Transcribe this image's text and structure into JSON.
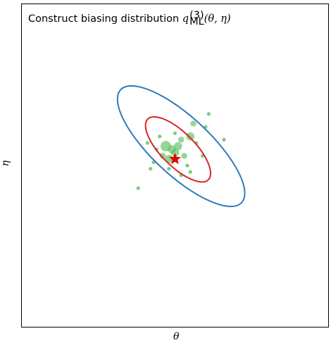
{
  "title": {
    "prefix": "Construct biasing distribution ",
    "q": "q",
    "superscript": "(3)",
    "subscript": "ML",
    "args": "(θ, η)"
  },
  "axes": {
    "xlabel": "θ",
    "ylabel": "η"
  },
  "colors": {
    "outer_ellipse": "#2e7bbf",
    "inner_ellipse": "#d62728",
    "samples": "#5cbf5c",
    "star": "#e00000"
  },
  "chart_data": {
    "type": "scatter",
    "title": "Construct biasing distribution q_ML^(3)(θ, η)",
    "xlabel": "θ",
    "ylabel": "η",
    "center": [
      0.5,
      0.52
    ],
    "samples": [
      {
        "x": 0.48,
        "y": 0.52,
        "w": 3
      },
      {
        "x": 0.5,
        "y": 0.54,
        "w": 3
      },
      {
        "x": 0.47,
        "y": 0.56,
        "w": 4
      },
      {
        "x": 0.49,
        "y": 0.55,
        "w": 3
      },
      {
        "x": 0.51,
        "y": 0.56,
        "w": 3
      },
      {
        "x": 0.53,
        "y": 0.53,
        "w": 2
      },
      {
        "x": 0.46,
        "y": 0.53,
        "w": 2
      },
      {
        "x": 0.55,
        "y": 0.59,
        "w": 3
      },
      {
        "x": 0.56,
        "y": 0.63,
        "w": 2
      },
      {
        "x": 0.52,
        "y": 0.58,
        "w": 2
      },
      {
        "x": 0.44,
        "y": 0.55,
        "w": 1
      },
      {
        "x": 0.5,
        "y": 0.6,
        "w": 1
      },
      {
        "x": 0.54,
        "y": 0.5,
        "w": 1
      },
      {
        "x": 0.42,
        "y": 0.49,
        "w": 1
      },
      {
        "x": 0.48,
        "y": 0.49,
        "w": 1
      },
      {
        "x": 0.59,
        "y": 0.53,
        "w": 1
      },
      {
        "x": 0.57,
        "y": 0.57,
        "w": 1
      },
      {
        "x": 0.45,
        "y": 0.59,
        "w": 1
      },
      {
        "x": 0.52,
        "y": 0.47,
        "w": 1
      },
      {
        "x": 0.61,
        "y": 0.66,
        "w": 1
      },
      {
        "x": 0.38,
        "y": 0.43,
        "w": 1
      },
      {
        "x": 0.66,
        "y": 0.58,
        "w": 1
      },
      {
        "x": 0.6,
        "y": 0.62,
        "w": 1
      },
      {
        "x": 0.43,
        "y": 0.51,
        "w": 1
      },
      {
        "x": 0.55,
        "y": 0.48,
        "w": 1
      },
      {
        "x": 0.41,
        "y": 0.57,
        "w": 1
      }
    ],
    "ellipses": [
      {
        "name": "outer",
        "cx": 0.52,
        "cy": 0.56,
        "rx": 0.27,
        "ry": 0.09,
        "angle_deg": 43
      },
      {
        "name": "inner",
        "cx": 0.51,
        "cy": 0.55,
        "rx": 0.14,
        "ry": 0.052,
        "angle_deg": 45
      }
    ]
  }
}
